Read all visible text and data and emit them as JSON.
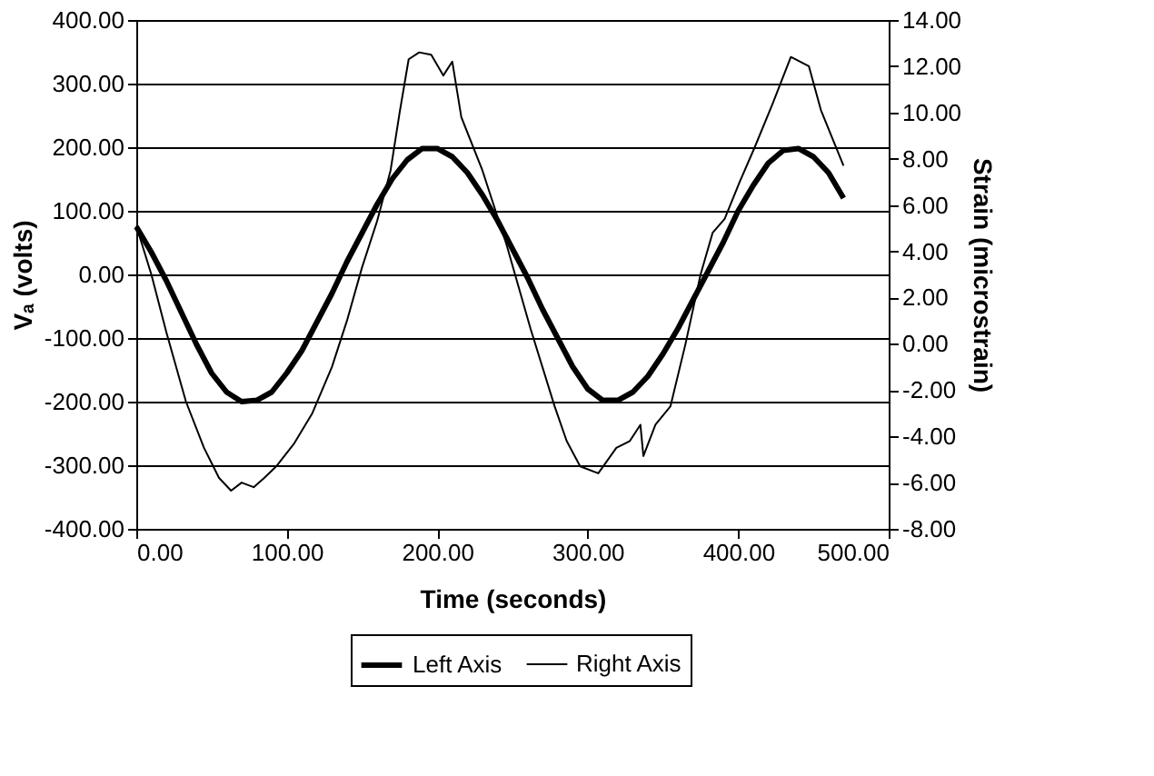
{
  "chart_data": {
    "type": "line",
    "xlabel": "Time (seconds)",
    "ylabel": "Vₐ (volts)",
    "y2label": "Strain (microstrain)",
    "xlim": [
      0,
      500
    ],
    "xticks": [
      {
        "value": 0,
        "label": "0.00"
      },
      {
        "value": 100,
        "label": "100.00"
      },
      {
        "value": 200,
        "label": "200.00"
      },
      {
        "value": 300,
        "label": "300.00"
      },
      {
        "value": 400,
        "label": "400.00"
      },
      {
        "value": 500,
        "label": "500.00"
      }
    ],
    "ylim": [
      -400,
      400
    ],
    "yticks": [
      {
        "value": -400,
        "label": "-400.00"
      },
      {
        "value": -300,
        "label": "-300.00"
      },
      {
        "value": -200,
        "label": "-200.00"
      },
      {
        "value": -100,
        "label": "-100.00"
      },
      {
        "value": 0,
        "label": "0.00"
      },
      {
        "value": 100,
        "label": "100.00"
      },
      {
        "value": 200,
        "label": "200.00"
      },
      {
        "value": 300,
        "label": "300.00"
      },
      {
        "value": 400,
        "label": "400.00"
      }
    ],
    "y2lim": [
      -8,
      14
    ],
    "y2ticks": [
      {
        "value": -8,
        "label": "-8.00"
      },
      {
        "value": -6,
        "label": "-6.00"
      },
      {
        "value": -4,
        "label": "-4.00"
      },
      {
        "value": -2,
        "label": "-2.00"
      },
      {
        "value": 0,
        "label": "0.00"
      },
      {
        "value": 2,
        "label": "2.00"
      },
      {
        "value": 4,
        "label": "4.00"
      },
      {
        "value": 6,
        "label": "6.00"
      },
      {
        "value": 8,
        "label": "8.00"
      },
      {
        "value": 10,
        "label": "10.00"
      },
      {
        "value": 12,
        "label": "12.00"
      },
      {
        "value": 14,
        "label": "14.00"
      }
    ],
    "grid": "y",
    "legend": "bottom",
    "marker": "none",
    "series": [
      {
        "name": "Left Axis",
        "color": "#000000",
        "axis": "y",
        "x": [
          0,
          10,
          20,
          30,
          40,
          50,
          60,
          70,
          80,
          90,
          100,
          110,
          120,
          130,
          140,
          150,
          160,
          170,
          180,
          190,
          200,
          210,
          220,
          230,
          240,
          250,
          260,
          270,
          280,
          290,
          300,
          310,
          320,
          330,
          340,
          350,
          360,
          370,
          380,
          390,
          400,
          410,
          420,
          430,
          440,
          450,
          460,
          470
        ],
        "values": [
          75,
          35,
          -10,
          -60,
          -110,
          -155,
          -185,
          -200,
          -198,
          -185,
          -155,
          -120,
          -75,
          -30,
          20,
          65,
          110,
          150,
          180,
          198,
          198,
          185,
          160,
          125,
          85,
          40,
          -5,
          -55,
          -100,
          -145,
          -180,
          -198,
          -198,
          -185,
          -160,
          -125,
          -85,
          -40,
          5,
          50,
          100,
          140,
          175,
          195,
          198,
          185,
          160,
          120
        ]
      },
      {
        "name": "Right Axis",
        "color": "#000000",
        "axis": "y2",
        "x": [
          0,
          10,
          20,
          33,
          45,
          55,
          63,
          70,
          78,
          85,
          93,
          105,
          117,
          130,
          140,
          150,
          160,
          169,
          175,
          181,
          188,
          196,
          204,
          210,
          216,
          230,
          246,
          262,
          278,
          286,
          295,
          307,
          319,
          328,
          335,
          337,
          345,
          355,
          365,
          375,
          383,
          391,
          401,
          411,
          423,
          435,
          447,
          455,
          470
        ],
        "values": [
          5.1,
          3.0,
          0.5,
          -2.5,
          -4.5,
          -5.8,
          -6.35,
          -6.0,
          -6.2,
          -5.8,
          -5.3,
          -4.3,
          -3.0,
          -1.0,
          1.0,
          3.3,
          5.3,
          7.5,
          10.0,
          12.3,
          12.6,
          12.5,
          11.6,
          12.2,
          9.8,
          7.5,
          4.3,
          0.65,
          -2.7,
          -4.2,
          -5.3,
          -5.6,
          -4.5,
          -4.2,
          -3.5,
          -4.85,
          -3.5,
          -2.7,
          0.0,
          3.0,
          4.8,
          5.4,
          7.0,
          8.5,
          10.4,
          12.4,
          12.0,
          10.1,
          7.7
        ]
      }
    ]
  }
}
